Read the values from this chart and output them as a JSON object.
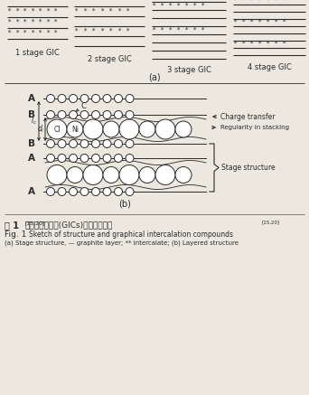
{
  "bg_color": "#ece8df",
  "lc": "#2a2a2a",
  "stage_labels": [
    "1 stage GIC",
    "2 stage GIC",
    "3 stage GIC",
    "4 stage GIC"
  ],
  "panel_a_label": "(a)",
  "panel_b_label": "(b)"
}
